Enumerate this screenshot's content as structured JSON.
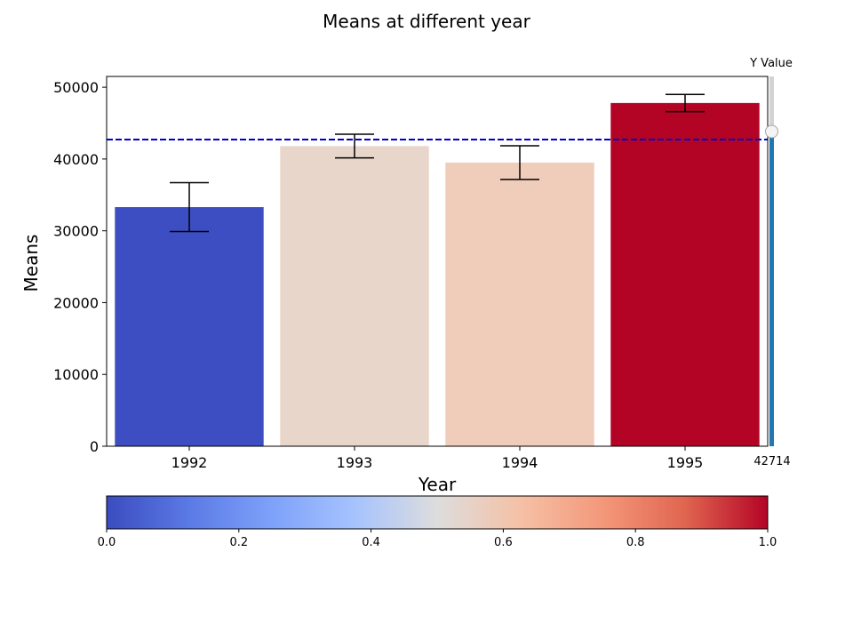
{
  "chart_data": {
    "type": "bar",
    "title": "Means at different year",
    "xlabel": "Year",
    "ylabel": "Means",
    "categories": [
      "1992",
      "1993",
      "1994",
      "1995"
    ],
    "values": [
      33300,
      41800,
      39500,
      47800
    ],
    "errors": [
      3400,
      1650,
      2350,
      1200
    ],
    "bar_colors": [
      "#3d4ec2",
      "#e8d6cb",
      "#f0cdbb",
      "#b40426"
    ],
    "ylim": [
      0,
      51500
    ],
    "yticks": [
      0,
      10000,
      20000,
      30000,
      40000,
      50000
    ],
    "yticklabels": [
      "0",
      "10000",
      "20000",
      "30000",
      "40000",
      "50000"
    ],
    "reference_line": {
      "value": 42714,
      "color": "#0000cc",
      "style": "dashed"
    },
    "grid": false,
    "colorbar": {
      "range": [
        0.0,
        1.0
      ],
      "colormap": "coolwarm",
      "ticks": [
        0.0,
        0.2,
        0.4,
        0.6,
        0.8,
        1.0
      ],
      "ticklabels": [
        "0.0",
        "0.2",
        "0.4",
        "0.6",
        "0.8",
        "1.0"
      ]
    },
    "slider": {
      "label": "Y Value",
      "value": 42714,
      "value_text": "42714",
      "range": [
        0,
        51500
      ],
      "track_color": "#d3d3d3",
      "fill_color": "#1f77b4"
    }
  }
}
